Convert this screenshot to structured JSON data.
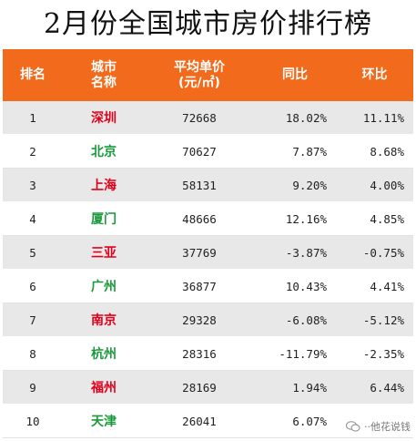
{
  "title": "2月份全国城市房价排行榜",
  "colors": {
    "header_bg": "#f26a1b",
    "city_red": "#e0001b",
    "city_green": "#1a9a3a"
  },
  "headers": [
    "排名",
    "城市\n名称",
    "平均单价\n(元/㎡)",
    "同比",
    "环比"
  ],
  "rows": [
    {
      "rank": "1",
      "city": "深圳",
      "price": "72668",
      "yoy": "18.02%",
      "mom": "11.11%",
      "city_color": "red"
    },
    {
      "rank": "2",
      "city": "北京",
      "price": "70627",
      "yoy": "7.87%",
      "mom": "8.68%",
      "city_color": "green"
    },
    {
      "rank": "3",
      "city": "上海",
      "price": "58131",
      "yoy": "9.20%",
      "mom": "4.00%",
      "city_color": "red"
    },
    {
      "rank": "4",
      "city": "厦门",
      "price": "48666",
      "yoy": "12.16%",
      "mom": "4.85%",
      "city_color": "green"
    },
    {
      "rank": "5",
      "city": "三亚",
      "price": "37769",
      "yoy": "-3.87%",
      "mom": "-0.75%",
      "city_color": "red"
    },
    {
      "rank": "6",
      "city": "广州",
      "price": "36877",
      "yoy": "10.43%",
      "mom": "4.41%",
      "city_color": "green"
    },
    {
      "rank": "7",
      "city": "南京",
      "price": "29328",
      "yoy": "-6.08%",
      "mom": "-5.12%",
      "city_color": "red"
    },
    {
      "rank": "8",
      "city": "杭州",
      "price": "28316",
      "yoy": "-11.79%",
      "mom": "-2.35%",
      "city_color": "green"
    },
    {
      "rank": "9",
      "city": "福州",
      "price": "28169",
      "yoy": "1.94%",
      "mom": "6.44%",
      "city_color": "red"
    },
    {
      "rank": "10",
      "city": "天津",
      "price": "26041",
      "yoy": "6.07%",
      "mom": "",
      "city_color": "green"
    }
  ],
  "watermark": {
    "icon": "wechat-icon",
    "text": "··他花说钱"
  }
}
